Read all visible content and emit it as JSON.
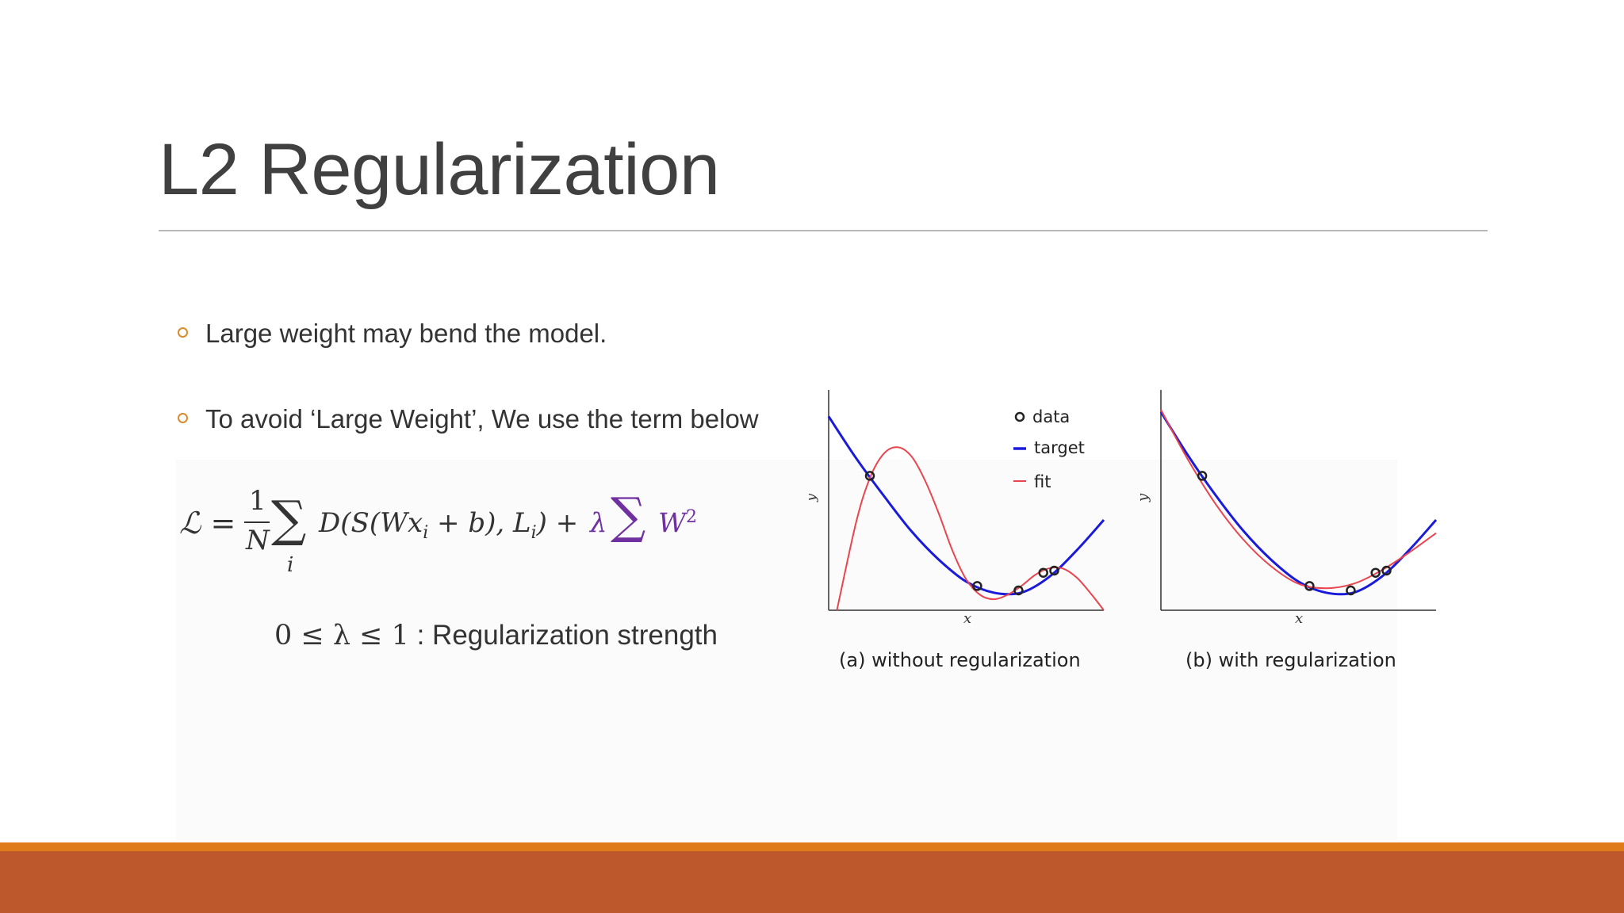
{
  "slide": {
    "title": "L2 Regularization",
    "bullets": [
      "Large weight may bend the model.",
      "To avoid ‘Large Weight’, We use the term below"
    ],
    "formula": {
      "lhs": "ℒ =",
      "numerator": "1",
      "denominator": "N",
      "sum_symbol": "∑",
      "sum_index": "i",
      "body": "D(S(Wx",
      "body_sub": "i",
      "body_tail": " + b), L",
      "body_tail_sub": "i",
      "body_close": ") +",
      "lambda": "λ",
      "reg_sum": "∑",
      "reg_term": "W",
      "reg_power": "2"
    },
    "lambda_range": {
      "math": "0 ≤ λ ≤ 1",
      "text": " : Regularization strength"
    },
    "colors": {
      "accent_bullet": "#d98a2b",
      "regularization_purple": "#7030a0",
      "bar_orange": "#e07b1a",
      "bar_rust": "#bd582c",
      "target_blue": "#1a1adb",
      "fit_red": "#e8454f"
    }
  },
  "chart_data": [
    {
      "type": "line",
      "caption": "(a)  without regularization",
      "xlabel": "x",
      "ylabel": "y",
      "xlim": [
        0,
        1
      ],
      "ylim": [
        0,
        1
      ],
      "legend": [
        "data",
        "target",
        "fit"
      ],
      "legend_placement": "top-right",
      "data_points": [
        {
          "x": 0.15,
          "y": 0.61
        },
        {
          "x": 0.54,
          "y": 0.11
        },
        {
          "x": 0.69,
          "y": 0.09
        },
        {
          "x": 0.78,
          "y": 0.17
        },
        {
          "x": 0.82,
          "y": 0.18
        }
      ],
      "series": [
        {
          "name": "target",
          "x": [
            0,
            0.1,
            0.2,
            0.3,
            0.4,
            0.5,
            0.6,
            0.7,
            0.8,
            0.9,
            1.0
          ],
          "y": [
            0.88,
            0.69,
            0.52,
            0.36,
            0.23,
            0.13,
            0.08,
            0.08,
            0.15,
            0.27,
            0.41
          ]
        },
        {
          "name": "fit",
          "x": [
            0.03,
            0.1,
            0.15,
            0.2,
            0.25,
            0.3,
            0.35,
            0.4,
            0.45,
            0.5,
            0.55,
            0.6,
            0.65,
            0.7,
            0.75,
            0.8,
            0.85,
            0.9,
            0.95,
            1.0
          ],
          "y": [
            0.0,
            0.4,
            0.6,
            0.71,
            0.74,
            0.7,
            0.59,
            0.44,
            0.27,
            0.14,
            0.07,
            0.05,
            0.07,
            0.11,
            0.16,
            0.19,
            0.19,
            0.15,
            0.08,
            0.0
          ]
        }
      ]
    },
    {
      "type": "line",
      "caption": "(b)  with regularization",
      "xlabel": "x",
      "ylabel": "y",
      "xlim": [
        0,
        1
      ],
      "ylim": [
        0,
        1
      ],
      "data_points": [
        {
          "x": 0.15,
          "y": 0.61
        },
        {
          "x": 0.54,
          "y": 0.11
        },
        {
          "x": 0.69,
          "y": 0.09
        },
        {
          "x": 0.78,
          "y": 0.17
        },
        {
          "x": 0.82,
          "y": 0.18
        }
      ],
      "series": [
        {
          "name": "target",
          "x": [
            0,
            0.1,
            0.2,
            0.3,
            0.4,
            0.5,
            0.6,
            0.7,
            0.8,
            0.9,
            1.0
          ],
          "y": [
            0.9,
            0.7,
            0.52,
            0.36,
            0.23,
            0.13,
            0.08,
            0.08,
            0.15,
            0.27,
            0.41
          ]
        },
        {
          "name": "fit",
          "x": [
            0,
            0.1,
            0.2,
            0.3,
            0.4,
            0.5,
            0.6,
            0.7,
            0.8,
            0.9,
            1.0
          ],
          "y": [
            0.91,
            0.68,
            0.48,
            0.32,
            0.2,
            0.12,
            0.1,
            0.12,
            0.18,
            0.26,
            0.35
          ]
        }
      ]
    }
  ]
}
